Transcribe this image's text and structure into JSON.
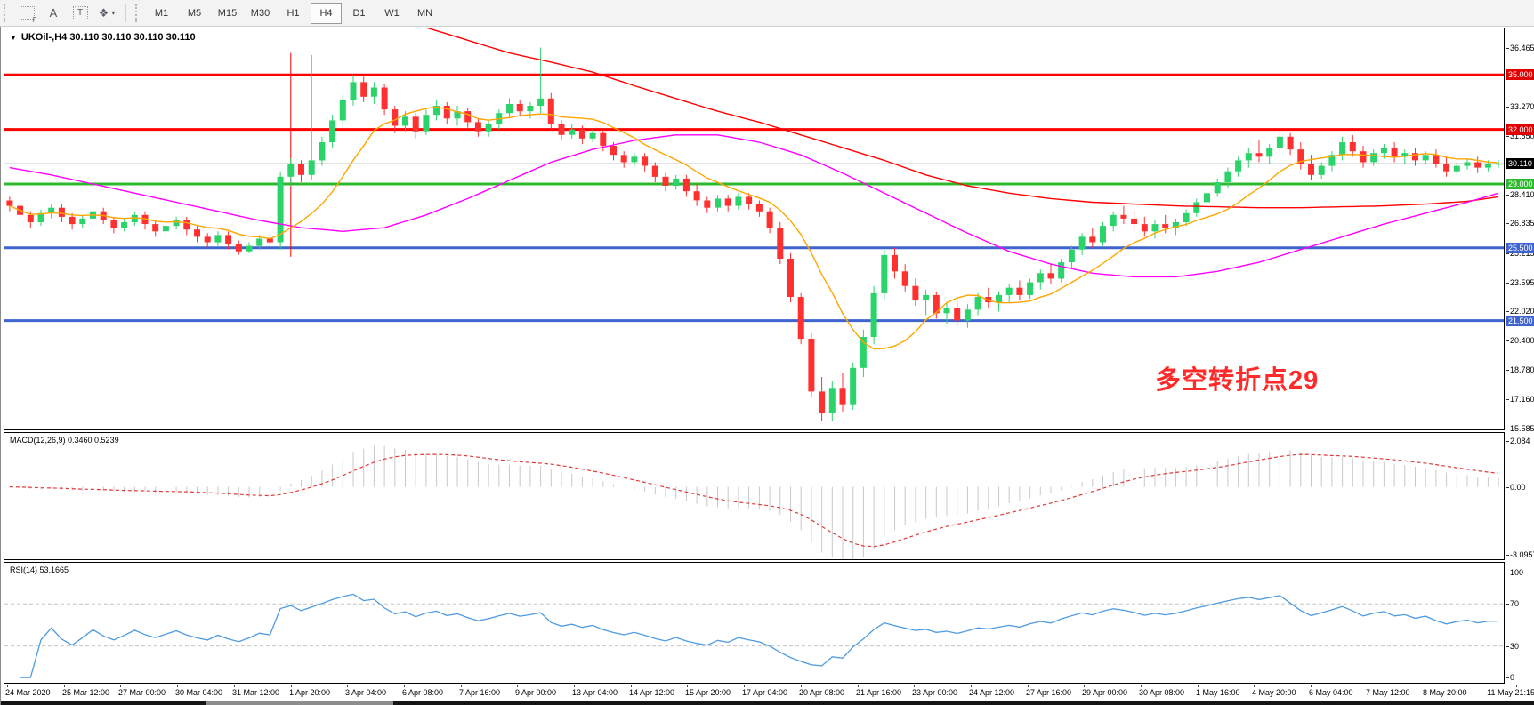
{
  "toolbar": {
    "tools": [
      {
        "name": "frame-tool",
        "glyph": "F"
      },
      {
        "name": "label-tool",
        "glyph": "A"
      },
      {
        "name": "textbox-tool",
        "glyph": "T"
      },
      {
        "name": "shapes-tool",
        "glyph": "❖",
        "caret": "▾"
      }
    ],
    "timeframes": [
      "M1",
      "M5",
      "M15",
      "M30",
      "H1",
      "H4",
      "D1",
      "W1",
      "MN"
    ],
    "active_timeframe": "H4"
  },
  "chart": {
    "title": "UKOil-,H4  30.110 30.110 30.110 30.110",
    "dropdown_glyph": "▼"
  },
  "indicators": {
    "macd": {
      "label": "MACD(12,26,9) 0.3460 0.5239",
      "params": [
        12,
        26,
        9
      ],
      "value_main": 0.346,
      "value_signal": 0.5239,
      "ticks": [
        {
          "v": 2.084,
          "t": "2.084"
        },
        {
          "v": 0,
          "t": "0.00"
        },
        {
          "v": -3.0957,
          "t": "-3.0957"
        }
      ],
      "ylim": [
        -3.287,
        2.445
      ],
      "hist_color": "#c8c8c8",
      "signal_color": "#e03a3a"
    },
    "rsi": {
      "label": "RSI(14) 53.1665",
      "period": 14,
      "value": 53.1665,
      "ticks": [
        {
          "v": 100,
          "t": "100"
        },
        {
          "v": 70,
          "t": "70"
        },
        {
          "v": 30,
          "t": "30"
        },
        {
          "v": 0,
          "t": "0"
        }
      ],
      "levels": [
        70,
        30
      ],
      "ylim": [
        -5,
        109
      ],
      "line_color": "#4f9be0",
      "level_color": "#c4c4c4"
    }
  },
  "annotation": {
    "text": "多空转折点29",
    "color": "#ff2a2a",
    "bar": 110,
    "price": 19.4
  },
  "price_axis": {
    "plain_ticks": [
      36.465,
      34.845,
      33.27,
      31.65,
      28.41,
      26.835,
      25.215,
      23.595,
      22.02,
      20.4,
      18.78,
      17.16,
      15.585
    ],
    "highlighted": [
      {
        "price": 35.0,
        "text": "35.000",
        "bg": "#e00000"
      },
      {
        "price": 32.0,
        "text": "32.000",
        "bg": "#e00000"
      },
      {
        "price": 30.11,
        "text": "30.110",
        "bg": "#000000"
      },
      {
        "price": 29.0,
        "text": "29.000",
        "bg": "#2eb82e"
      },
      {
        "price": 25.5,
        "text": "25.500",
        "bg": "#3f63cf"
      },
      {
        "price": 21.5,
        "text": "21.500",
        "bg": "#3f63cf"
      }
    ]
  },
  "chart_data": {
    "type": "candlestick",
    "symbol": "UKOil-",
    "timeframe": "H4",
    "title": "UKOil-,H4",
    "ylim": [
      15.52,
      37.55
    ],
    "colors": {
      "up": "#2bd46b",
      "down": "#ff3030",
      "current_line": "#8a9099"
    },
    "x_labels": [
      "24 Mar 2020",
      "25 Mar 12:00",
      "27 Mar 00:00",
      "30 Mar 04:00",
      "31 Mar 12:00",
      "1 Apr 20:00",
      "3 Apr 04:00",
      "6 Apr 08:00",
      "7 Apr 16:00",
      "9 Apr 00:00",
      "13 Apr 04:00",
      "14 Apr 12:00",
      "15 Apr 20:00",
      "17 Apr 04:00",
      "20 Apr 08:00",
      "21 Apr 16:00",
      "23 Apr 00:00",
      "24 Apr 12:00",
      "27 Apr 16:00",
      "29 Apr 00:00",
      "30 Apr 08:00",
      "1 May 16:00",
      "4 May 20:00",
      "6 May 04:00",
      "7 May 12:00",
      "8 May 20:00",
      "11 May 21:15"
    ],
    "hlines": [
      {
        "price": 35.0,
        "color": "#ff0000",
        "width": 3
      },
      {
        "price": 32.0,
        "color": "#ff0000",
        "width": 3
      },
      {
        "price": 30.11,
        "color": "#8a9099",
        "width": 1
      },
      {
        "price": 29.0,
        "color": "#2eb82e",
        "width": 3
      },
      {
        "price": 25.5,
        "color": "#3f63cf",
        "width": 3
      },
      {
        "price": 21.5,
        "color": "#3f63cf",
        "width": 3
      }
    ],
    "vline": {
      "bar": 27,
      "from": 25.0,
      "to": 36.2,
      "color": "#ff0000"
    },
    "moving_averages": {
      "orange": {
        "type": "sma",
        "period": 10,
        "color": "#ffa500"
      },
      "magenta": {
        "color": "#ff00ff",
        "points": [
          [
            0,
            29.9
          ],
          [
            4,
            29.5
          ],
          [
            8,
            29.0
          ],
          [
            12,
            28.5
          ],
          [
            16,
            28.0
          ],
          [
            20,
            27.5
          ],
          [
            24,
            27.0
          ],
          [
            28,
            26.6
          ],
          [
            32,
            26.4
          ],
          [
            36,
            26.6
          ],
          [
            40,
            27.3
          ],
          [
            44,
            28.2
          ],
          [
            48,
            29.2
          ],
          [
            52,
            30.2
          ],
          [
            56,
            30.9
          ],
          [
            60,
            31.4
          ],
          [
            64,
            31.7
          ],
          [
            68,
            31.7
          ],
          [
            72,
            31.3
          ],
          [
            76,
            30.6
          ],
          [
            80,
            29.6
          ],
          [
            84,
            28.5
          ],
          [
            88,
            27.4
          ],
          [
            92,
            26.3
          ],
          [
            96,
            25.3
          ],
          [
            100,
            24.6
          ],
          [
            104,
            24.1
          ],
          [
            108,
            23.9
          ],
          [
            112,
            23.9
          ],
          [
            116,
            24.2
          ],
          [
            120,
            24.7
          ],
          [
            124,
            25.4
          ],
          [
            128,
            26.1
          ],
          [
            132,
            26.8
          ],
          [
            136,
            27.4
          ],
          [
            140,
            28.0
          ],
          [
            143,
            28.5
          ]
        ]
      },
      "red": {
        "color": "#ff0000",
        "points": [
          [
            40,
            37.6
          ],
          [
            44,
            36.9
          ],
          [
            48,
            36.2
          ],
          [
            52,
            35.7
          ],
          [
            56,
            35.15
          ],
          [
            60,
            34.4
          ],
          [
            64,
            33.7
          ],
          [
            68,
            33.0
          ],
          [
            72,
            32.4
          ],
          [
            76,
            31.7
          ],
          [
            80,
            31.0
          ],
          [
            84,
            30.3
          ],
          [
            88,
            29.5
          ],
          [
            92,
            28.9
          ],
          [
            96,
            28.5
          ],
          [
            100,
            28.2
          ],
          [
            104,
            28.0
          ],
          [
            108,
            27.9
          ],
          [
            112,
            27.8
          ],
          [
            116,
            27.75
          ],
          [
            120,
            27.7
          ],
          [
            124,
            27.7
          ],
          [
            128,
            27.75
          ],
          [
            132,
            27.8
          ],
          [
            136,
            27.9
          ],
          [
            140,
            28.05
          ],
          [
            143,
            28.3
          ]
        ]
      }
    },
    "candles": [
      [
        28.1,
        28.3,
        27.5,
        27.8
      ],
      [
        27.8,
        28.0,
        27.0,
        27.3
      ],
      [
        27.3,
        27.5,
        26.6,
        26.9
      ],
      [
        26.9,
        27.6,
        26.7,
        27.4
      ],
      [
        27.4,
        27.9,
        27.1,
        27.7
      ],
      [
        27.7,
        27.9,
        26.9,
        27.2
      ],
      [
        27.2,
        27.4,
        26.5,
        26.8
      ],
      [
        26.8,
        27.3,
        26.6,
        27.1
      ],
      [
        27.1,
        27.7,
        26.9,
        27.5
      ],
      [
        27.5,
        27.7,
        26.8,
        27.0
      ],
      [
        27.0,
        27.2,
        26.3,
        26.6
      ],
      [
        26.6,
        27.1,
        26.4,
        26.9
      ],
      [
        26.9,
        27.5,
        26.7,
        27.3
      ],
      [
        27.3,
        27.5,
        26.5,
        26.8
      ],
      [
        26.8,
        27.0,
        26.1,
        26.4
      ],
      [
        26.4,
        26.9,
        26.2,
        26.7
      ],
      [
        26.7,
        27.2,
        26.5,
        27.0
      ],
      [
        27.0,
        27.2,
        26.2,
        26.5
      ],
      [
        26.5,
        26.7,
        25.8,
        26.1
      ],
      [
        26.1,
        26.3,
        25.5,
        25.8
      ],
      [
        25.8,
        26.4,
        25.6,
        26.2
      ],
      [
        26.2,
        26.4,
        25.4,
        25.7
      ],
      [
        25.7,
        25.9,
        25.1,
        25.3
      ],
      [
        25.3,
        25.8,
        25.2,
        25.6
      ],
      [
        25.6,
        26.2,
        25.4,
        26.0
      ],
      [
        26.0,
        26.2,
        25.5,
        25.8
      ],
      [
        25.8,
        29.7,
        25.4,
        29.4
      ],
      [
        29.4,
        30.4,
        28.9,
        30.1
      ],
      [
        30.1,
        30.3,
        29.1,
        29.5
      ],
      [
        29.5,
        36.1,
        29.2,
        30.3
      ],
      [
        30.3,
        31.6,
        30.0,
        31.3
      ],
      [
        31.3,
        32.8,
        31.0,
        32.5
      ],
      [
        32.5,
        33.9,
        32.2,
        33.6
      ],
      [
        33.6,
        35.0,
        33.3,
        34.6
      ],
      [
        34.6,
        34.9,
        33.5,
        33.8
      ],
      [
        33.8,
        34.6,
        33.4,
        34.3
      ],
      [
        34.3,
        34.5,
        32.8,
        33.1
      ],
      [
        33.1,
        33.3,
        31.8,
        32.2
      ],
      [
        32.2,
        33.0,
        31.9,
        32.7
      ],
      [
        32.7,
        32.9,
        31.5,
        31.9
      ],
      [
        31.9,
        33.1,
        31.7,
        32.8
      ],
      [
        32.8,
        33.6,
        32.5,
        33.3
      ],
      [
        33.3,
        33.5,
        32.3,
        32.6
      ],
      [
        32.6,
        33.3,
        32.2,
        33.0
      ],
      [
        33.0,
        33.2,
        32.1,
        32.4
      ],
      [
        32.4,
        32.6,
        31.6,
        31.9
      ],
      [
        31.9,
        32.5,
        31.6,
        32.3
      ],
      [
        32.3,
        33.1,
        32.0,
        32.9
      ],
      [
        32.9,
        33.7,
        32.6,
        33.4
      ],
      [
        33.4,
        33.6,
        32.7,
        33.0
      ],
      [
        33.0,
        33.5,
        32.6,
        33.3
      ],
      [
        33.3,
        36.5,
        32.9,
        33.7
      ],
      [
        33.7,
        34.0,
        32.0,
        32.3
      ],
      [
        32.3,
        32.5,
        31.4,
        31.7
      ],
      [
        31.7,
        32.3,
        31.5,
        32.0
      ],
      [
        32.0,
        32.2,
        31.2,
        31.5
      ],
      [
        31.5,
        32.0,
        31.3,
        31.8
      ],
      [
        31.8,
        32.0,
        30.8,
        31.1
      ],
      [
        31.1,
        31.3,
        30.3,
        30.6
      ],
      [
        30.6,
        30.8,
        29.9,
        30.2
      ],
      [
        30.2,
        30.7,
        30.0,
        30.5
      ],
      [
        30.5,
        30.7,
        29.7,
        30.0
      ],
      [
        30.0,
        30.2,
        29.1,
        29.4
      ],
      [
        29.4,
        29.6,
        28.6,
        28.9
      ],
      [
        28.9,
        29.5,
        28.7,
        29.3
      ],
      [
        29.3,
        29.5,
        28.3,
        28.6
      ],
      [
        28.6,
        29.0,
        27.8,
        28.1
      ],
      [
        28.1,
        28.3,
        27.4,
        27.7
      ],
      [
        27.7,
        28.4,
        27.5,
        28.2
      ],
      [
        28.2,
        28.4,
        27.5,
        27.8
      ],
      [
        27.8,
        28.5,
        27.6,
        28.3
      ],
      [
        28.3,
        28.5,
        27.6,
        27.9
      ],
      [
        27.9,
        28.1,
        27.2,
        27.5
      ],
      [
        27.5,
        27.7,
        26.3,
        26.6
      ],
      [
        26.6,
        26.9,
        24.6,
        24.9
      ],
      [
        24.9,
        25.2,
        22.5,
        22.8
      ],
      [
        22.8,
        23.0,
        20.2,
        20.5
      ],
      [
        20.5,
        20.8,
        17.3,
        17.6
      ],
      [
        17.6,
        18.4,
        15.98,
        16.4
      ],
      [
        16.4,
        18.2,
        16.0,
        17.8
      ],
      [
        17.8,
        18.6,
        16.5,
        16.9
      ],
      [
        16.9,
        19.2,
        16.6,
        18.9
      ],
      [
        18.9,
        21.0,
        18.4,
        20.6
      ],
      [
        20.6,
        23.4,
        20.2,
        23.0
      ],
      [
        23.0,
        25.4,
        22.6,
        25.1
      ],
      [
        25.1,
        25.5,
        23.8,
        24.2
      ],
      [
        24.2,
        24.6,
        23.1,
        23.4
      ],
      [
        23.4,
        23.8,
        22.3,
        22.6
      ],
      [
        22.6,
        23.2,
        21.8,
        22.9
      ],
      [
        22.9,
        23.1,
        21.6,
        21.9
      ],
      [
        21.9,
        22.5,
        21.3,
        22.2
      ],
      [
        22.2,
        22.6,
        21.2,
        21.5
      ],
      [
        21.5,
        22.4,
        21.1,
        22.1
      ],
      [
        22.1,
        23.0,
        21.8,
        22.8
      ],
      [
        22.8,
        23.3,
        22.2,
        22.5
      ],
      [
        22.5,
        23.1,
        22.0,
        22.9
      ],
      [
        22.9,
        23.5,
        22.5,
        23.3
      ],
      [
        23.3,
        23.7,
        22.6,
        22.9
      ],
      [
        22.9,
        23.8,
        22.7,
        23.6
      ],
      [
        23.6,
        24.3,
        23.2,
        24.1
      ],
      [
        24.1,
        24.6,
        23.5,
        23.8
      ],
      [
        23.8,
        24.9,
        23.6,
        24.7
      ],
      [
        24.7,
        25.6,
        24.4,
        25.4
      ],
      [
        25.4,
        26.3,
        25.1,
        26.1
      ],
      [
        26.1,
        26.6,
        25.5,
        25.8
      ],
      [
        25.8,
        26.9,
        25.6,
        26.7
      ],
      [
        26.7,
        27.5,
        26.4,
        27.3
      ],
      [
        27.3,
        27.8,
        26.8,
        27.1
      ],
      [
        27.1,
        27.6,
        26.5,
        26.8
      ],
      [
        26.8,
        27.2,
        26.1,
        26.4
      ],
      [
        26.4,
        27.0,
        26.0,
        26.8
      ],
      [
        26.8,
        27.3,
        26.3,
        26.6
      ],
      [
        26.6,
        27.1,
        26.2,
        26.9
      ],
      [
        26.9,
        27.6,
        26.7,
        27.4
      ],
      [
        27.4,
        28.2,
        27.2,
        28.0
      ],
      [
        28.0,
        28.7,
        27.7,
        28.5
      ],
      [
        28.5,
        29.3,
        28.3,
        29.1
      ],
      [
        29.1,
        29.9,
        28.8,
        29.7
      ],
      [
        29.7,
        30.5,
        29.4,
        30.3
      ],
      [
        30.3,
        31.0,
        29.9,
        30.7
      ],
      [
        30.7,
        31.4,
        30.2,
        30.5
      ],
      [
        30.5,
        31.2,
        30.1,
        31.0
      ],
      [
        31.0,
        31.9,
        30.7,
        31.6
      ],
      [
        31.6,
        31.8,
        30.6,
        30.9
      ],
      [
        30.9,
        31.3,
        29.8,
        30.1
      ],
      [
        30.1,
        30.6,
        29.2,
        29.5
      ],
      [
        29.5,
        30.2,
        29.3,
        30.0
      ],
      [
        30.0,
        30.8,
        29.7,
        30.6
      ],
      [
        30.6,
        31.6,
        30.3,
        31.3
      ],
      [
        31.3,
        31.7,
        30.5,
        30.8
      ],
      [
        30.8,
        31.1,
        29.9,
        30.2
      ],
      [
        30.2,
        30.9,
        30.0,
        30.7
      ],
      [
        30.7,
        31.2,
        30.4,
        31.0
      ],
      [
        31.0,
        31.3,
        30.2,
        30.5
      ],
      [
        30.5,
        30.9,
        30.1,
        30.7
      ],
      [
        30.7,
        31.0,
        30.0,
        30.3
      ],
      [
        30.3,
        30.8,
        30.1,
        30.6
      ],
      [
        30.6,
        30.9,
        29.9,
        30.1
      ],
      [
        30.1,
        30.5,
        29.4,
        29.7
      ],
      [
        29.7,
        30.2,
        29.5,
        30.0
      ],
      [
        30.0,
        30.4,
        29.8,
        30.2
      ],
      [
        30.2,
        30.5,
        29.6,
        29.9
      ],
      [
        29.9,
        30.3,
        29.7,
        30.1
      ],
      [
        30.1,
        30.3,
        29.9,
        30.11
      ]
    ]
  }
}
